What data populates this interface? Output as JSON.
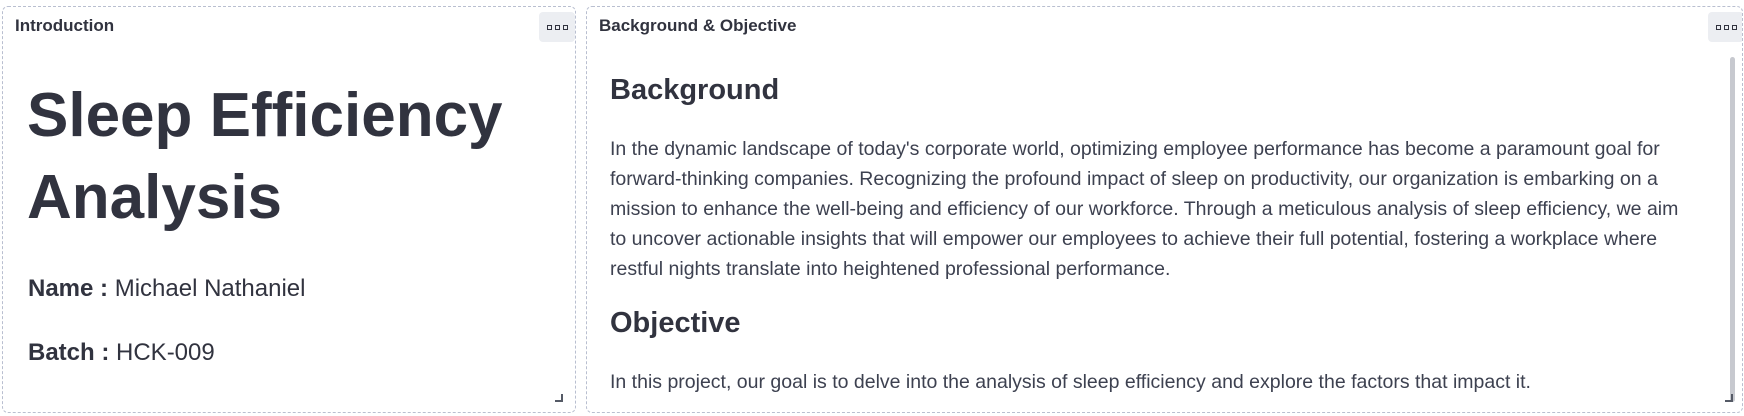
{
  "intro_panel": {
    "title": "Introduction",
    "main_title": "Sleep Efficiency Analysis",
    "name_label": "Name :",
    "name_value": "Michael Nathaniel",
    "batch_label": "Batch :",
    "batch_value": "HCK-009",
    "menu_icon": "more-options-icon"
  },
  "bg_panel": {
    "title": "Background & Objective",
    "background_heading": "Background",
    "background_text": "In the dynamic landscape of today's corporate world, optimizing employee performance has become a paramount goal for forward-thinking companies. Recognizing the profound impact of sleep on productivity, our organization is embarking on a mission to enhance the well-being and efficiency of our workforce. Through a meticulous analysis of sleep efficiency, we aim to uncover actionable insights that will empower our employees to achieve their full potential, fostering a workplace where restful nights translate into heightened professional performance.",
    "objective_heading": "Objective",
    "objective_text": "In this project, our goal is to delve into the analysis of sleep efficiency and explore the factors that impact it.",
    "menu_icon": "more-options-icon"
  },
  "colors": {
    "text_primary": "#31333f",
    "text_body": "#3d4150",
    "panel_border": "#b9bfd0",
    "menu_bg": "#eceef2",
    "scrollbar": "#c7c9cf"
  }
}
